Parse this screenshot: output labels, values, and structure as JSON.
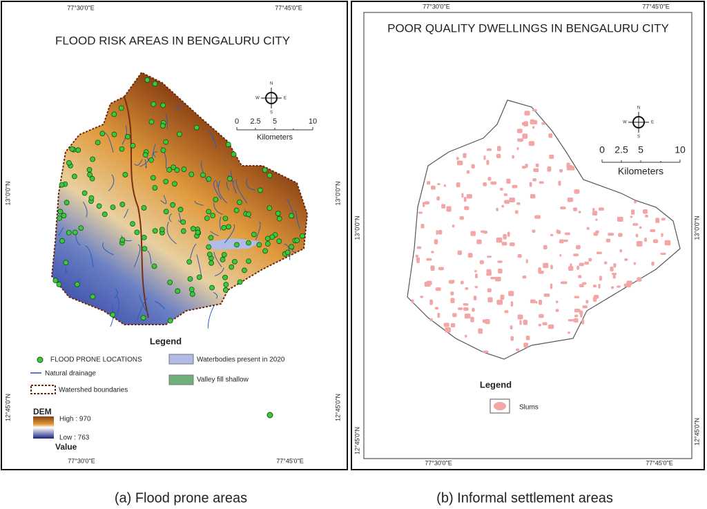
{
  "panels": [
    {
      "title": "FLOOD RISK AREAS IN BENGALURU CITY",
      "coords": {
        "top": [
          "77°30'0\"E",
          "77°45'0\"E"
        ],
        "bottom": [
          "77°30'0\"E",
          "77°45'0\"E"
        ],
        "left": [
          "13°0'0\"N",
          "12°45'0\"N"
        ],
        "right": [
          "13°0'0\"N",
          "12°45'0\"N"
        ]
      },
      "compass": {
        "n": "N",
        "e": "E",
        "s": "S",
        "w": "W"
      },
      "scale": {
        "ticks": [
          "0",
          "2.5",
          "5",
          "10"
        ],
        "unit": "Kilometers"
      },
      "legend": {
        "title": "Legend",
        "items": [
          "FLOOD PRONE LOCATIONS",
          "Natural drainage",
          "Watershed boundaries",
          "Waterbodies present in 2020",
          "Valley fill shallow"
        ],
        "dem": {
          "title": "DEM",
          "high": "High : 970",
          "low": "Low : 763",
          "value": "Value"
        }
      },
      "caption": "(a)  Flood prone areas"
    },
    {
      "title": "POOR QUALITY DWELLINGS IN BENGALURU CITY",
      "coords": {
        "top": [
          "77°30'0\"E",
          "77°45'0\"E"
        ],
        "bottom": [
          "77°30'0\"E",
          "77°45'0\"E"
        ],
        "left": [
          "13°0'0\"N",
          "12°45'0\"N"
        ],
        "right": [
          "13°0'0\"N",
          "12°45'0\"N"
        ]
      },
      "compass": {
        "n": "N",
        "e": "E",
        "s": "S",
        "w": "W"
      },
      "scale": {
        "ticks": [
          "0",
          "2.5",
          "5",
          "10"
        ],
        "unit": "Kilometers"
      },
      "legend": {
        "title": "Legend",
        "items": [
          "Slums"
        ]
      },
      "caption": "(b) Informal settlement areas"
    }
  ]
}
